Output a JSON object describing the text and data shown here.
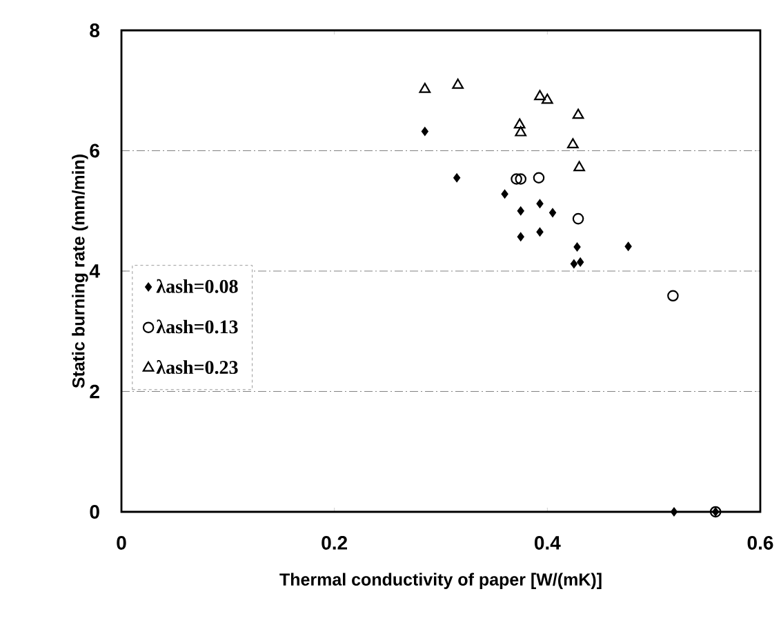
{
  "chart_data": {
    "type": "scatter",
    "xlabel": "Thermal conductivity of paper [W/(mK)]",
    "ylabel": "Static burning rate (mm/min)",
    "xlim": [
      0,
      0.6
    ],
    "ylim": [
      0,
      8
    ],
    "xticks": [
      0,
      0.2,
      0.4,
      0.6
    ],
    "yticks": [
      0,
      2,
      4,
      6,
      8
    ],
    "grid": "y",
    "legend": "left",
    "series": [
      {
        "name": "λash=0.08",
        "color": "#000000",
        "marker": "diamond",
        "x": [
          0.285,
          0.315,
          0.36,
          0.375,
          0.393,
          0.405,
          0.375,
          0.393,
          0.428,
          0.425,
          0.431,
          0.476,
          0.519,
          0.558
        ],
        "values": [
          6.32,
          5.55,
          5.28,
          5.0,
          5.12,
          4.97,
          4.57,
          4.65,
          4.4,
          4.12,
          4.15,
          4.41,
          0,
          0
        ]
      },
      {
        "name": "λash=0.13",
        "color": "#000000",
        "marker": "circle",
        "x": [
          0.371,
          0.375,
          0.392,
          0.429,
          0.518,
          0.558
        ],
        "values": [
          5.53,
          5.53,
          5.55,
          4.87,
          3.59,
          0
        ]
      },
      {
        "name": "λash=0.23",
        "color": "#000000",
        "marker": "triangle",
        "x": [
          0.285,
          0.316,
          0.374,
          0.375,
          0.393,
          0.4,
          0.429,
          0.424,
          0.43
        ],
        "values": [
          7.02,
          7.09,
          6.43,
          6.3,
          6.9,
          6.84,
          6.59,
          6.1,
          5.72
        ]
      }
    ]
  }
}
